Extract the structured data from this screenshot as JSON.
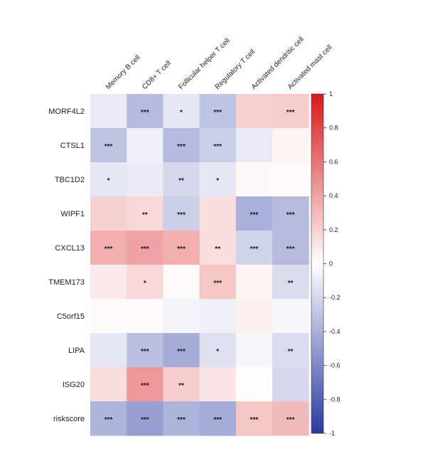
{
  "chart_data": {
    "type": "heatmap",
    "columns": [
      "Memory B cell",
      "CD8+ T cell",
      "Follicular helper T cell",
      "Regulatory T cell",
      "Activated dendritic cell",
      "Activated mast cell"
    ],
    "rows": [
      "MORF4L2",
      "CTSL1",
      "TBC1D2",
      "WIPF1",
      "CXCL13",
      "TMEM173",
      "C5orf15",
      "LIPA",
      "ISG20",
      "riskscore"
    ],
    "values": [
      [
        -0.1,
        -0.35,
        -0.12,
        -0.3,
        0.2,
        0.22
      ],
      [
        -0.3,
        -0.08,
        -0.35,
        -0.25,
        -0.1,
        0.05
      ],
      [
        -0.12,
        -0.1,
        -0.2,
        -0.12,
        0.03,
        0.02
      ],
      [
        0.2,
        0.17,
        -0.25,
        0.14,
        -0.4,
        -0.35
      ],
      [
        0.35,
        0.4,
        0.35,
        0.15,
        -0.22,
        -0.35
      ],
      [
        0.1,
        0.17,
        0.02,
        0.25,
        0.05,
        -0.18
      ],
      [
        0.02,
        0.02,
        -0.05,
        -0.08,
        0.07,
        -0.04
      ],
      [
        -0.12,
        -0.32,
        -0.42,
        -0.15,
        -0.04,
        -0.18
      ],
      [
        0.15,
        0.45,
        0.22,
        0.12,
        0.01,
        -0.2
      ],
      [
        -0.38,
        -0.48,
        -0.38,
        -0.42,
        0.25,
        0.3
      ]
    ],
    "stars": [
      [
        "",
        "***",
        "*",
        "***",
        "",
        "***"
      ],
      [
        "***",
        "",
        "***",
        "***",
        "",
        ""
      ],
      [
        "*",
        "",
        "**",
        "*",
        "",
        ""
      ],
      [
        "",
        "**",
        "***",
        "",
        "***",
        "***"
      ],
      [
        "***",
        "***",
        "***",
        "**",
        "***",
        "***"
      ],
      [
        "",
        "*",
        "",
        "***",
        "",
        "**"
      ],
      [
        "",
        "",
        "",
        "",
        "",
        ""
      ],
      [
        "",
        "***",
        "***",
        "*",
        "",
        "**"
      ],
      [
        "",
        "***",
        "**",
        "",
        "",
        ""
      ],
      [
        "***",
        "***",
        "***",
        "***",
        "***",
        "***"
      ]
    ],
    "colorbar": {
      "range": [
        -1,
        1
      ],
      "ticks": [
        1,
        0.8,
        0.6,
        0.4,
        0.2,
        0,
        -0.2,
        -0.4,
        -0.6,
        -0.8,
        -1
      ],
      "tick_labels": [
        "1",
        "0.8",
        "0.6",
        "0.4",
        "0.2",
        "0",
        "-0.2",
        "-0.4",
        "-0.6",
        "-0.8",
        "-1"
      ],
      "colors": {
        "high": "#d7191c",
        "mid": "#ffffff",
        "low": "#2b3aa0"
      }
    },
    "legend": "right"
  }
}
